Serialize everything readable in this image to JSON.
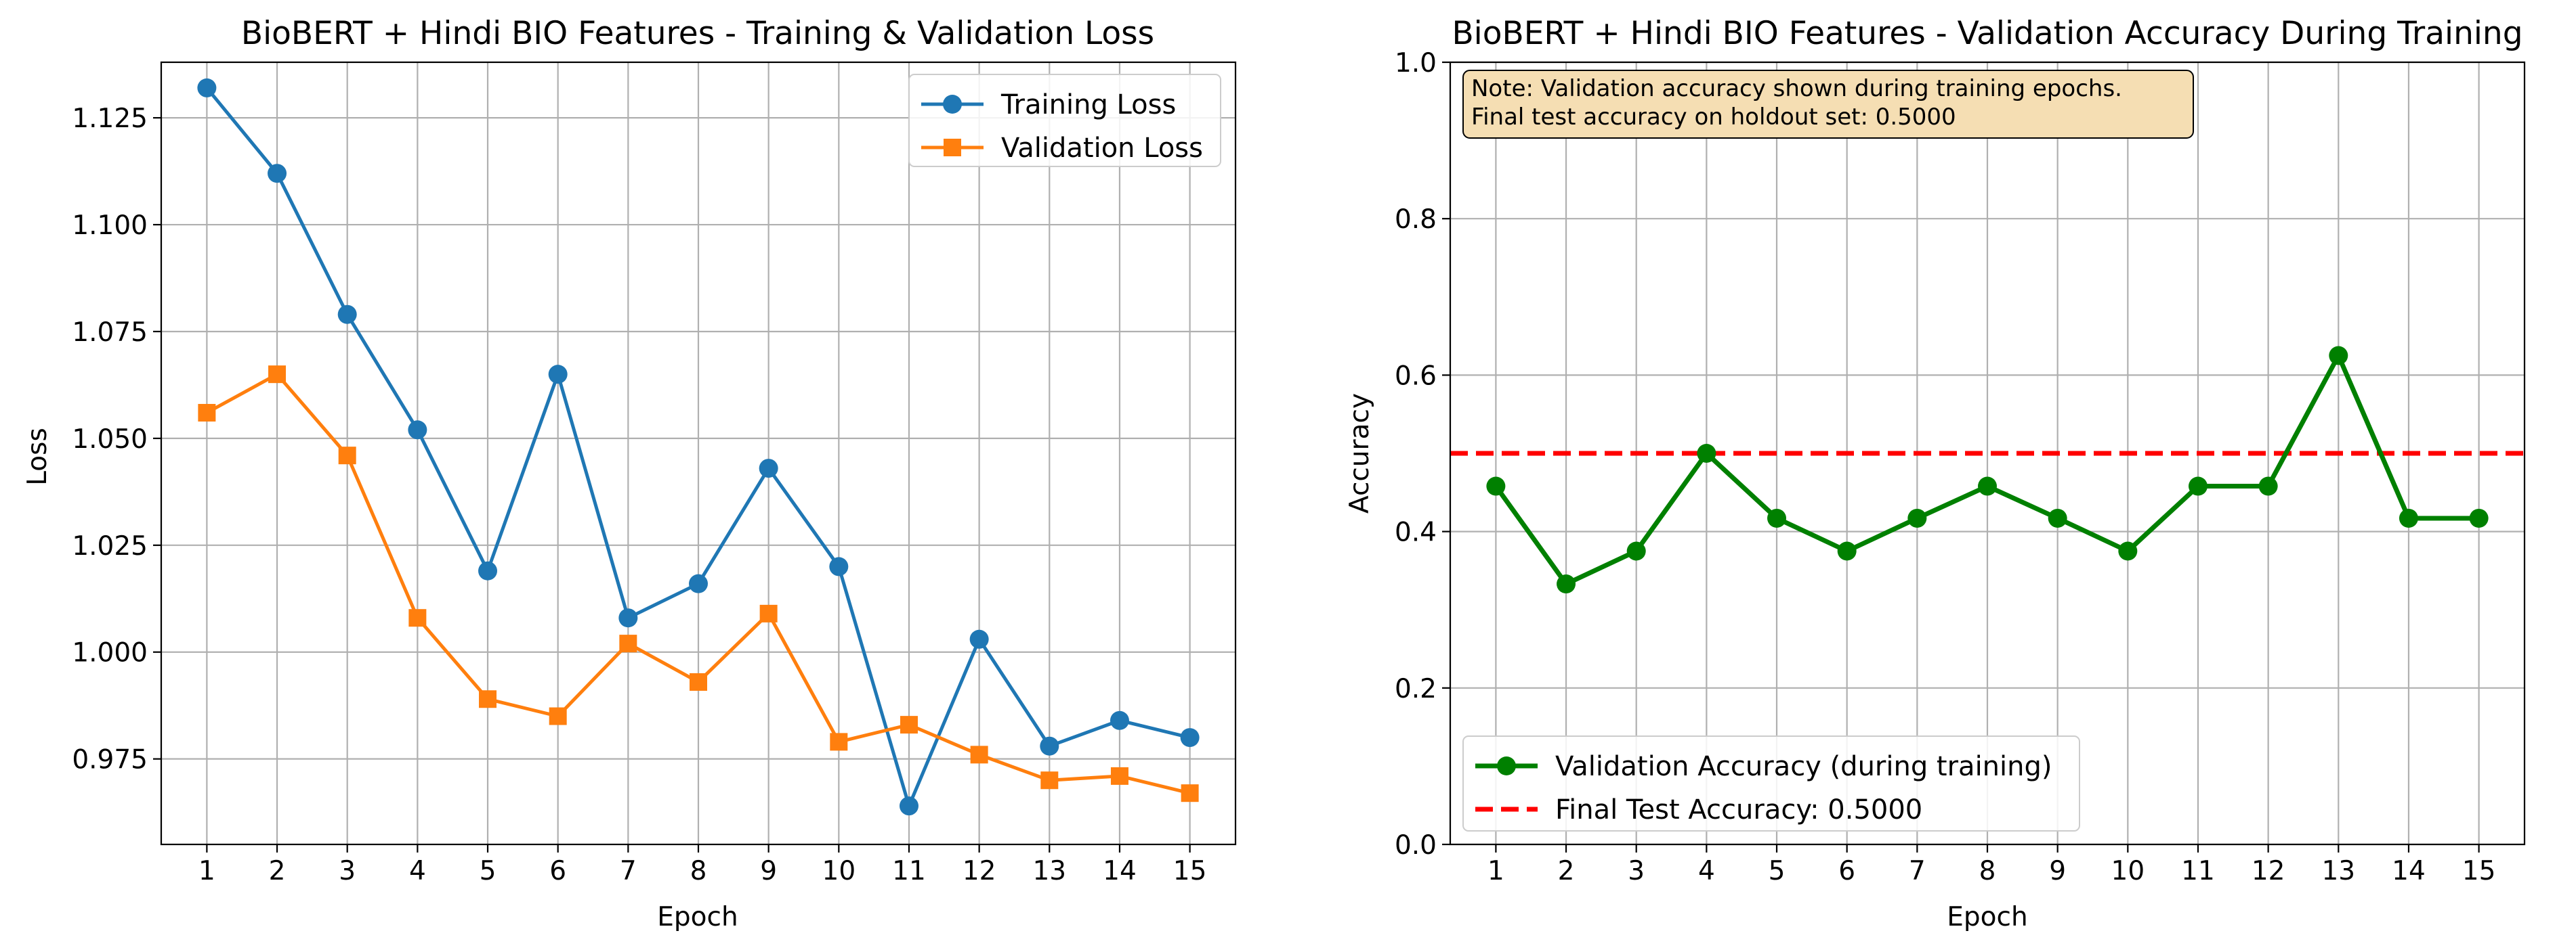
{
  "chart_data": [
    {
      "type": "line",
      "title": "BioBERT + Hindi BIO Features - Training & Validation Loss",
      "xlabel": "Epoch",
      "ylabel": "Loss",
      "x": [
        1,
        2,
        3,
        4,
        5,
        6,
        7,
        8,
        9,
        10,
        11,
        12,
        13,
        14,
        15
      ],
      "xticks": [
        "1",
        "2",
        "3",
        "4",
        "5",
        "6",
        "7",
        "8",
        "9",
        "10",
        "11",
        "12",
        "13",
        "14",
        "15"
      ],
      "xlim": [
        0.35,
        15.65
      ],
      "ylim": [
        0.955,
        1.138
      ],
      "yticks": [
        "0.975",
        "1.000",
        "1.025",
        "1.050",
        "1.075",
        "1.100",
        "1.125"
      ],
      "grid": true,
      "legend_position": "top-right",
      "series": [
        {
          "name": "Training Loss",
          "color": "#1f77b4",
          "marker": "circle",
          "values": [
            1.132,
            1.112,
            1.079,
            1.052,
            1.019,
            1.065,
            1.008,
            1.016,
            1.043,
            1.02,
            0.964,
            1.003,
            0.978,
            0.984,
            0.98
          ]
        },
        {
          "name": "Validation Loss",
          "color": "#ff7f0e",
          "marker": "square",
          "values": [
            1.056,
            1.065,
            1.046,
            1.008,
            0.989,
            0.985,
            1.002,
            0.993,
            1.009,
            0.979,
            0.983,
            0.976,
            0.97,
            0.971,
            0.967
          ]
        }
      ]
    },
    {
      "type": "line",
      "title": "BioBERT + Hindi BIO Features - Validation Accuracy During Training",
      "xlabel": "Epoch",
      "ylabel": "Accuracy",
      "x": [
        1,
        2,
        3,
        4,
        5,
        6,
        7,
        8,
        9,
        10,
        11,
        12,
        13,
        14,
        15
      ],
      "xticks": [
        "1",
        "2",
        "3",
        "4",
        "5",
        "6",
        "7",
        "8",
        "9",
        "10",
        "11",
        "12",
        "13",
        "14",
        "15"
      ],
      "xlim": [
        0.35,
        15.65
      ],
      "ylim": [
        0,
        1.0
      ],
      "yticks": [
        "0.0",
        "0.2",
        "0.4",
        "0.6",
        "0.8",
        "1.0"
      ],
      "grid": true,
      "legend_position": "bottom-left",
      "series": [
        {
          "name": "Validation Accuracy (during training)",
          "color": "#008000",
          "marker": "circle",
          "values": [
            0.458,
            0.333,
            0.375,
            0.5,
            0.417,
            0.375,
            0.417,
            0.458,
            0.417,
            0.375,
            0.458,
            0.458,
            0.625,
            0.417,
            0.417
          ]
        }
      ],
      "reference_line": {
        "name": "Final Test Accuracy: 0.5000",
        "value": 0.5,
        "color": "#ff0000",
        "style": "dashed"
      },
      "annotation": {
        "line1": "Note: Validation accuracy shown during training epochs.",
        "line2": "Final test accuracy on holdout set: 0.5000",
        "background": "#f5deb3"
      }
    }
  ]
}
